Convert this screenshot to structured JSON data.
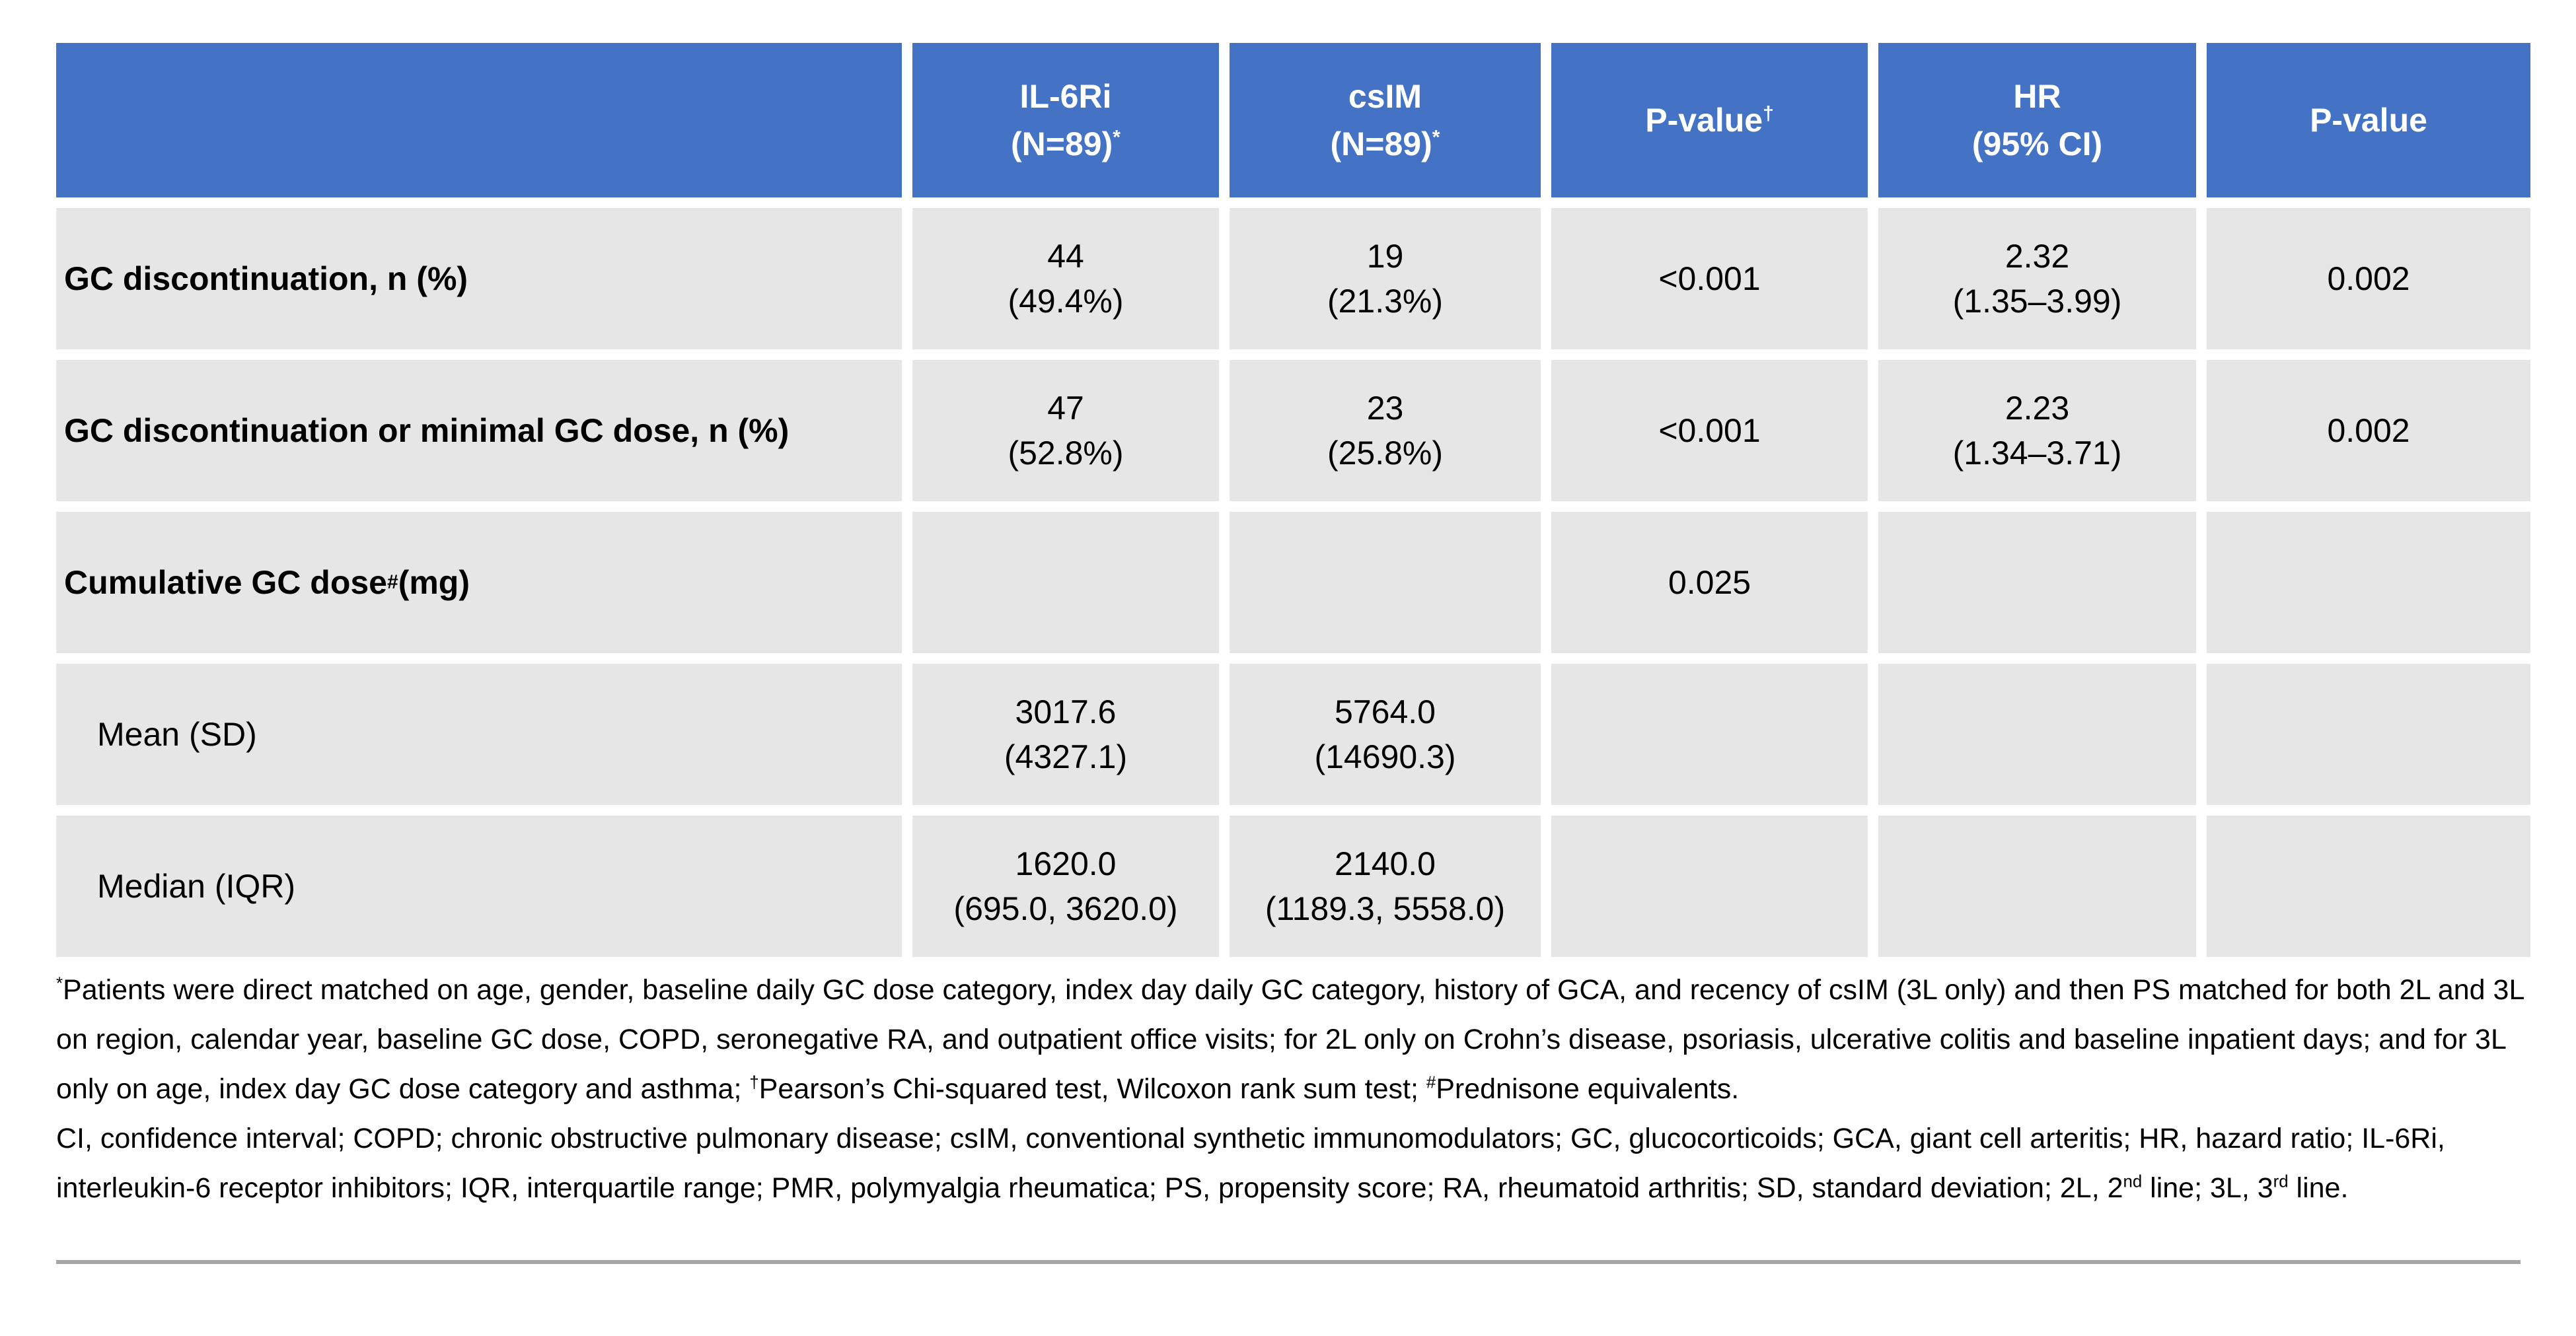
{
  "colors": {
    "header_bg": "#4472C4",
    "header_text": "#FFFFFF",
    "row_bg": "#E7E6E6",
    "divider": "#A6A6A6"
  },
  "table": {
    "header": {
      "col0": "",
      "columns": [
        {
          "line1": "IL-6Ri",
          "line1_sup": "",
          "line2": "(N=89)",
          "line2_sup": "*"
        },
        {
          "line1": "csIM",
          "line1_sup": "",
          "line2": "(N=89)",
          "line2_sup": "*"
        },
        {
          "line1": "P-value",
          "line1_sup": "†",
          "line2": "",
          "line2_sup": ""
        },
        {
          "line1": "HR",
          "line1_sup": "",
          "line2": "(95% CI)",
          "line2_sup": ""
        },
        {
          "line1": "P-value",
          "line1_sup": "",
          "line2": "",
          "line2_sup": ""
        }
      ]
    },
    "rows": [
      {
        "label": "GC discontinuation, n (%)",
        "label_sup": "",
        "label_suffix": "",
        "cells": [
          [
            "44",
            "(49.4%)"
          ],
          [
            "19",
            "(21.3%)"
          ],
          [
            "<0.001",
            ""
          ],
          [
            "2.32",
            "(1.35–3.99)"
          ],
          [
            "0.002",
            ""
          ]
        ]
      },
      {
        "label": "GC discontinuation or minimal GC dose, n (%)",
        "label_sup": "",
        "label_suffix": "",
        "cells": [
          [
            "47",
            "(52.8%)"
          ],
          [
            "23",
            "(25.8%)"
          ],
          [
            "<0.001",
            ""
          ],
          [
            "2.23",
            "(1.34–3.71)"
          ],
          [
            "0.002",
            ""
          ]
        ]
      },
      {
        "label": "Cumulative GC dose",
        "label_sup": "#",
        "label_suffix": " (mg)",
        "cells": [
          [
            "",
            ""
          ],
          [
            "",
            ""
          ],
          [
            "0.025",
            ""
          ],
          [
            "",
            ""
          ],
          [
            "",
            ""
          ]
        ]
      },
      {
        "label": "Mean (SD)",
        "label_sup": "",
        "label_suffix": "",
        "cells": [
          [
            "3017.6",
            "(4327.1)"
          ],
          [
            "5764.0",
            "(14690.3)"
          ],
          [
            "",
            ""
          ],
          [
            "",
            ""
          ],
          [
            "",
            ""
          ]
        ]
      },
      {
        "label": "Median (IQR)",
        "label_sup": "",
        "label_suffix": "",
        "cells": [
          [
            "1620.0",
            "(695.0, 3620.0)"
          ],
          [
            "2140.0",
            "(1189.3, 5558.0)"
          ],
          [
            "",
            ""
          ],
          [
            "",
            ""
          ],
          [
            "",
            ""
          ]
        ]
      }
    ]
  },
  "footnotes": {
    "para1": [
      {
        "s": "*"
      },
      {
        "t": "Patients were direct matched on age, gender, baseline daily GC dose category, index day daily GC category, history of GCA, and recency of csIM (3L only) and then PS matched for both 2L and 3L on region, calendar year, baseline GC dose, COPD, seronegative RA, and outpatient office visits; for 2L only on Crohn’s disease, psoriasis, ulcerative colitis and baseline inpatient days; and for 3L only on age, index day GC dose category and asthma; "
      },
      {
        "s": "†"
      },
      {
        "t": "Pearson’s Chi-squared test, Wilcoxon rank sum test; "
      },
      {
        "s": "#"
      },
      {
        "t": "Prednisone equivalents."
      }
    ],
    "para2": [
      {
        "t": "CI, confidence interval; COPD; chronic obstructive pulmonary disease; csIM, conventional synthetic immunomodulators; GC, glucocorticoids; GCA, giant cell arteritis; HR, hazard ratio; IL-6Ri, interleukin-6 receptor inhibitors; IQR, interquartile range; PMR, polymyalgia rheumatica; PS, propensity score; RA, rheumatoid arthritis; SD, standard deviation; 2L, 2"
      },
      {
        "s": "nd"
      },
      {
        "t": " line; 3L, 3"
      },
      {
        "s": "rd"
      },
      {
        "t": " line."
      }
    ]
  }
}
